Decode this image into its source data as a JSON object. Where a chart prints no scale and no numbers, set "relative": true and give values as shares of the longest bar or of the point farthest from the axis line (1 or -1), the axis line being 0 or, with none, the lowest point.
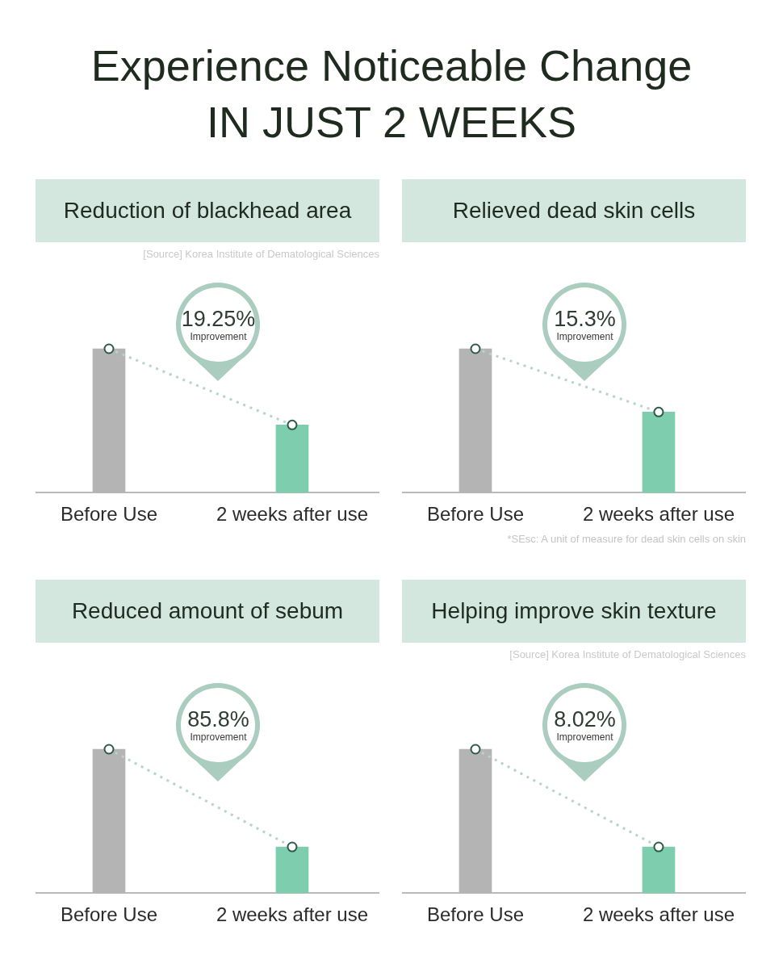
{
  "chart_data": [
    {
      "type": "other",
      "title": "Experience Noticeable Change",
      "subtitle": "IN JUST 2 WEEKS"
    },
    {
      "type": "bar",
      "title": "Reduction of blackhead area",
      "subtitle": "[Source] Korea Institute of Dematological Sciences",
      "categories": [
        "Before Use",
        "2 weeks after use"
      ],
      "relative": true,
      "marker": "circle",
      "line_style": "dotted",
      "series": [
        {
          "type": "bar",
          "colors": [
            "#b4b4b4",
            "#7ecdae"
          ],
          "values": [
            1,
            0.47
          ]
        },
        {
          "type": "line",
          "color": "#b7d4c8",
          "values": [
            1,
            0.47
          ]
        }
      ],
      "annotations": [
        "19.25%",
        "Improvement"
      ]
    },
    {
      "type": "bar",
      "title": "Relieved dead skin cells",
      "categories": [
        "Before Use",
        "2 weeks after use"
      ],
      "relative": true,
      "marker": "circle",
      "line_style": "dotted",
      "series": [
        {
          "type": "bar",
          "colors": [
            "#b4b4b4",
            "#7ecdae"
          ],
          "values": [
            1,
            0.56
          ]
        },
        {
          "type": "line",
          "color": "#b7d4c8",
          "values": [
            1,
            0.56
          ]
        }
      ],
      "annotations": [
        "15.3%",
        "Improvement",
        "*SEsc: A unit of measure for dead skin cells on skin"
      ]
    },
    {
      "type": "bar",
      "title": "Reduced amount of sebum",
      "categories": [
        "Before Use",
        "2 weeks after use"
      ],
      "relative": true,
      "marker": "circle",
      "line_style": "dotted",
      "series": [
        {
          "type": "bar",
          "colors": [
            "#b4b4b4",
            "#7ecdae"
          ],
          "values": [
            1,
            0.32
          ]
        },
        {
          "type": "line",
          "color": "#b7d4c8",
          "values": [
            1,
            0.32
          ]
        }
      ],
      "annotations": [
        "85.8%",
        "Improvement"
      ]
    },
    {
      "type": "bar",
      "title": "Helping improve skin texture",
      "subtitle": "[Source] Korea Institute of Dematological Sciences",
      "categories": [
        "Before Use",
        "2 weeks after use"
      ],
      "relative": true,
      "marker": "circle",
      "line_style": "dotted",
      "series": [
        {
          "type": "bar",
          "colors": [
            "#b4b4b4",
            "#7ecdae"
          ],
          "values": [
            1,
            0.32
          ]
        },
        {
          "type": "line",
          "color": "#b7d4c8",
          "values": [
            1,
            0.32
          ]
        }
      ],
      "annotations": [
        "8.02%",
        "Improvement"
      ]
    }
  ]
}
